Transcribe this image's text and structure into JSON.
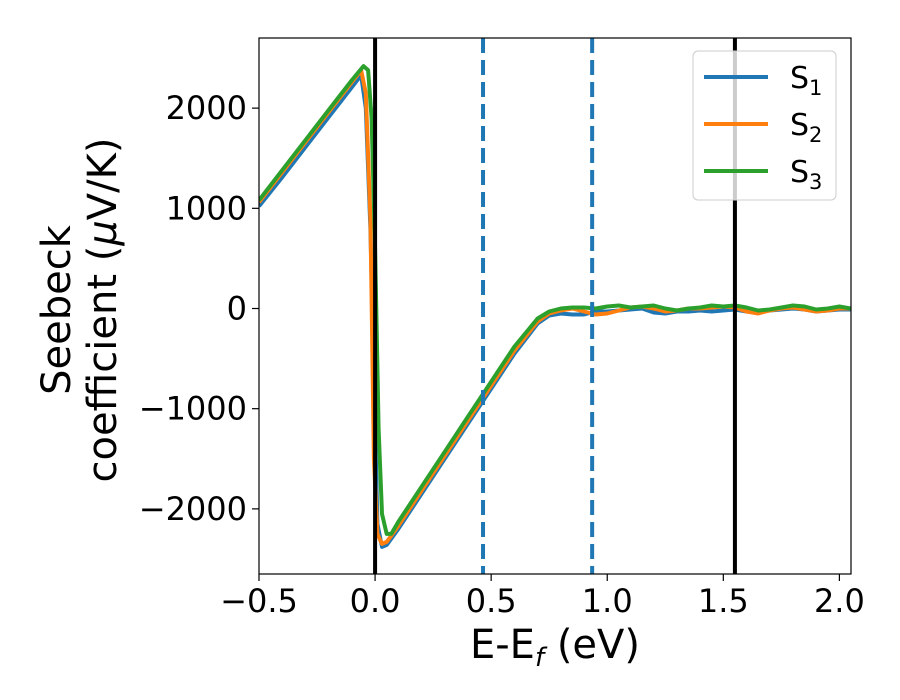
{
  "chart_data": {
    "type": "line",
    "xlabel": "E-E",
    "xlabel_sub": "f",
    "xlabel_suffix": " (eV)",
    "ylabel_line1": "Seebeck",
    "ylabel_line2_prefix": "coefficient  (",
    "ylabel_mu": "μ",
    "ylabel_line2_suffix": "V/K)",
    "xlim": [
      -0.5,
      2.05
    ],
    "ylim": [
      -2650,
      2700
    ],
    "xticks": [
      {
        "value": -0.5,
        "label": "−0.5"
      },
      {
        "value": 0.0,
        "label": "0.0"
      },
      {
        "value": 0.5,
        "label": "0.5"
      },
      {
        "value": 1.0,
        "label": "1.0"
      },
      {
        "value": 1.5,
        "label": "1.5"
      },
      {
        "value": 2.0,
        "label": "2.0"
      }
    ],
    "yticks": [
      {
        "value": -2000,
        "label": "−2000"
      },
      {
        "value": -1000,
        "label": "−1000"
      },
      {
        "value": 0,
        "label": "0"
      },
      {
        "value": 1000,
        "label": "1000"
      },
      {
        "value": 2000,
        "label": "2000"
      }
    ],
    "grid": false,
    "legend_position": "top-right",
    "vlines": [
      {
        "x": 0.0,
        "color": "#000000",
        "style": "solid"
      },
      {
        "x": 1.55,
        "color": "#000000",
        "style": "solid"
      },
      {
        "x": 0.465,
        "color": "#1f77b4",
        "style": "dashed"
      },
      {
        "x": 0.935,
        "color": "#1f77b4",
        "style": "dashed"
      }
    ],
    "series": [
      {
        "name": "S",
        "sub": "1",
        "color": "#1f77b4",
        "x": [
          -0.5,
          -0.4,
          -0.3,
          -0.2,
          -0.1,
          -0.06,
          -0.04,
          -0.02,
          0.0,
          0.01,
          0.03,
          0.05,
          0.1,
          0.2,
          0.3,
          0.4,
          0.5,
          0.6,
          0.7,
          0.75,
          0.8,
          0.85,
          0.9,
          0.95,
          1.0,
          1.05,
          1.1,
          1.15,
          1.2,
          1.25,
          1.3,
          1.35,
          1.4,
          1.45,
          1.5,
          1.55,
          1.6,
          1.65,
          1.7,
          1.75,
          1.8,
          1.85,
          1.9,
          1.95,
          2.0,
          2.05
        ],
        "y": [
          1020,
          1310,
          1610,
          1910,
          2210,
          2330,
          2000,
          800,
          -1200,
          -2150,
          -2380,
          -2360,
          -2200,
          -1850,
          -1500,
          -1150,
          -800,
          -450,
          -150,
          -70,
          -50,
          -60,
          -60,
          -30,
          -30,
          -20,
          -10,
          0,
          -40,
          -50,
          -30,
          -30,
          -20,
          -30,
          -20,
          -10,
          -30,
          -30,
          -20,
          -10,
          0,
          -10,
          -30,
          -20,
          -10,
          -10
        ]
      },
      {
        "name": "S",
        "sub": "2",
        "color": "#ff7f0e",
        "x": [
          -0.5,
          -0.4,
          -0.3,
          -0.2,
          -0.1,
          -0.06,
          -0.04,
          -0.02,
          -0.005,
          0.01,
          0.03,
          0.05,
          0.1,
          0.2,
          0.3,
          0.4,
          0.5,
          0.6,
          0.7,
          0.75,
          0.8,
          0.85,
          0.9,
          0.95,
          1.0,
          1.05,
          1.1,
          1.15,
          1.2,
          1.25,
          1.3,
          1.35,
          1.4,
          1.45,
          1.5,
          1.55,
          1.6,
          1.65,
          1.7,
          1.75,
          1.8,
          1.85,
          1.9,
          1.95,
          2.0,
          2.05
        ],
        "y": [
          1060,
          1360,
          1660,
          1960,
          2260,
          2380,
          2150,
          900,
          -1500,
          -2250,
          -2350,
          -2330,
          -2170,
          -1820,
          -1470,
          -1120,
          -770,
          -420,
          -130,
          -50,
          -20,
          0,
          -30,
          -60,
          -50,
          -20,
          10,
          20,
          0,
          -30,
          -20,
          0,
          0,
          10,
          20,
          10,
          -30,
          -50,
          -20,
          0,
          10,
          -10,
          -30,
          -20,
          0,
          0
        ]
      },
      {
        "name": "S",
        "sub": "3",
        "color": "#2ca02c",
        "x": [
          -0.5,
          -0.4,
          -0.3,
          -0.2,
          -0.1,
          -0.05,
          -0.03,
          -0.015,
          0.0,
          0.015,
          0.03,
          0.05,
          0.07,
          0.1,
          0.2,
          0.3,
          0.4,
          0.5,
          0.6,
          0.7,
          0.75,
          0.8,
          0.85,
          0.9,
          0.95,
          1.0,
          1.05,
          1.1,
          1.15,
          1.2,
          1.25,
          1.3,
          1.35,
          1.4,
          1.45,
          1.5,
          1.55,
          1.6,
          1.65,
          1.7,
          1.75,
          1.8,
          1.85,
          1.9,
          1.95,
          2.0,
          2.05
        ],
        "y": [
          1080,
          1380,
          1680,
          1980,
          2280,
          2420,
          2380,
          1900,
          600,
          -1200,
          -2050,
          -2250,
          -2250,
          -2130,
          -1780,
          -1430,
          -1080,
          -730,
          -380,
          -100,
          -30,
          0,
          10,
          10,
          0,
          20,
          30,
          10,
          20,
          30,
          0,
          -20,
          0,
          10,
          30,
          20,
          30,
          10,
          -20,
          -10,
          10,
          30,
          20,
          -10,
          0,
          20,
          0
        ]
      }
    ]
  }
}
